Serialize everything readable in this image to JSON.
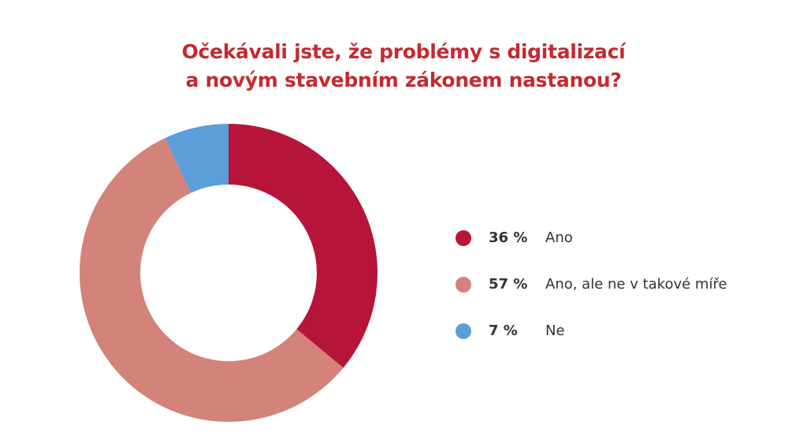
{
  "chart_data": {
    "type": "pie",
    "donut": true,
    "title_lines": [
      "Očekávali jste, že problémy s digitalizací",
      "a novým stavebním zákonem nastanou?"
    ],
    "slices": [
      {
        "label": "Ano",
        "value": 36,
        "value_label": "36 %",
        "color": "#b61539"
      },
      {
        "label": "Ano, ale ne v takové míře",
        "value": 57,
        "value_label": "57 %",
        "color": "#d3837a"
      },
      {
        "label": "Ne",
        "value": 7,
        "value_label": "7 %",
        "color": "#5a9fd9"
      }
    ],
    "legend_position": "right",
    "title_color": "#c42a30"
  }
}
